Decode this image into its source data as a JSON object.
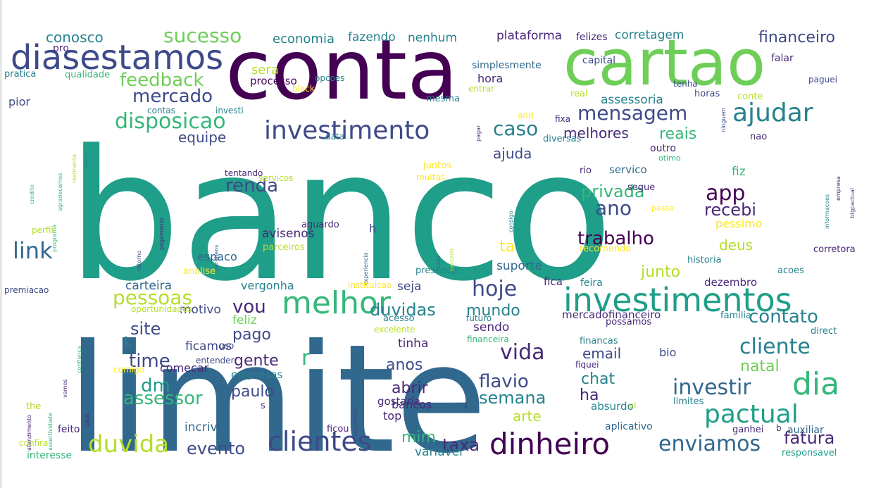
{
  "image": {
    "kind": "word cloud",
    "colormap": "viridis",
    "background": "#ffffff"
  },
  "palette": {
    "dark_purple": "#440154",
    "purple": "#482878",
    "indigo": "#3e4a89",
    "blue": "#31688e",
    "steel": "#26828e",
    "teal": "#1f9e89",
    "green_teal": "#35b779",
    "green": "#6ece58",
    "lime": "#b5de2b",
    "yellow": "#fde725"
  },
  "words": [
    {
      "text": "banco",
      "color": "#1f9e89"
    },
    {
      "text": "limite",
      "color": "#31688e"
    },
    {
      "text": "conta",
      "color": "#440154"
    },
    {
      "text": "cartao",
      "color": "#6ece58"
    },
    {
      "text": "diasestamos",
      "color": "#3e4a89"
    },
    {
      "text": "investimentos",
      "color": "#1f9e89"
    },
    {
      "text": "investimento",
      "color": "#3e4a89"
    },
    {
      "text": "melhor",
      "color": "#35b779"
    },
    {
      "text": "dinheiro",
      "color": "#440154"
    },
    {
      "text": "clientes",
      "color": "#3e4a89"
    },
    {
      "text": "dia",
      "color": "#35b779"
    },
    {
      "text": "pactual",
      "color": "#1f9e89"
    },
    {
      "text": "ajudar",
      "color": "#26828e"
    },
    {
      "text": "mensagem",
      "color": "#3e4a89"
    },
    {
      "text": "hoje",
      "color": "#3e4a89"
    },
    {
      "text": "cliente",
      "color": "#26828e"
    },
    {
      "text": "vida",
      "color": "#482878"
    },
    {
      "text": "investir",
      "color": "#31688e"
    },
    {
      "text": "enviamos",
      "color": "#31688e"
    },
    {
      "text": "duvida",
      "color": "#b5de2b"
    },
    {
      "text": "credito",
      "color": "#35b779"
    },
    {
      "text": "agradecemos",
      "color": "#35b779"
    },
    {
      "text": "link",
      "color": "#31688e"
    },
    {
      "text": "atendimento",
      "color": "#482878"
    },
    {
      "text": "assertividade",
      "color": "#35b779"
    },
    {
      "text": "disposicao",
      "color": "#35b779"
    },
    {
      "text": "mercado",
      "color": "#3e4a89"
    },
    {
      "text": "sucesso",
      "color": "#6ece58"
    },
    {
      "text": "feedback",
      "color": "#6ece58"
    },
    {
      "text": "caso",
      "color": "#26828e"
    },
    {
      "text": "ano",
      "color": "#3e4a89"
    },
    {
      "text": "privada",
      "color": "#35b779"
    },
    {
      "text": "app",
      "color": "#440154"
    },
    {
      "text": "renda",
      "color": "#3e4a89"
    },
    {
      "text": "trabalho",
      "color": "#440154"
    },
    {
      "text": "experiencia",
      "color": "#31688e"
    },
    {
      "text": "brasil",
      "color": "#31688e"
    },
    {
      "text": "parabens",
      "color": "#31688e"
    },
    {
      "text": "retorno",
      "color": "#3e4a89"
    },
    {
      "text": "pessoas",
      "color": "#b5de2b"
    },
    {
      "text": "vou",
      "color": "#482878"
    },
    {
      "text": "duvidas",
      "color": "#26828e"
    },
    {
      "text": "mundo",
      "color": "#26828e"
    },
    {
      "text": "contato",
      "color": "#26828e"
    },
    {
      "text": "informacoes",
      "color": "#26828e"
    },
    {
      "text": "empresa",
      "color": "#482878"
    },
    {
      "text": "recebi",
      "color": "#482878"
    },
    {
      "text": "reais",
      "color": "#35b779"
    },
    {
      "text": "ninguem",
      "color": "#3e4a89"
    },
    {
      "text": "melhores",
      "color": "#482878"
    },
    {
      "text": "equipe",
      "color": "#3e4a89"
    },
    {
      "text": "ajuda",
      "color": "#3e4a89"
    },
    {
      "text": "confianca",
      "color": "#35b779"
    },
    {
      "text": "vamos",
      "color": "#482878"
    },
    {
      "text": "time",
      "color": "#3e4a89"
    },
    {
      "text": "site",
      "color": "#3e4a89"
    },
    {
      "text": "dm",
      "color": "#1f9e89"
    },
    {
      "text": "assessor",
      "color": "#35b779"
    },
    {
      "text": "evento",
      "color": "#3e4a89"
    },
    {
      "text": "mim",
      "color": "#35b779"
    },
    {
      "text": "taxa",
      "color": "#482878"
    },
    {
      "text": "fatura",
      "color": "#482878"
    },
    {
      "text": "semana",
      "color": "#26828e"
    },
    {
      "text": "flavio",
      "color": "#3e4a89"
    },
    {
      "text": "abrir",
      "color": "#482878"
    },
    {
      "text": "anos",
      "color": "#3e4a89"
    },
    {
      "text": "chat",
      "color": "#26828e"
    },
    {
      "text": "natal",
      "color": "#6ece58"
    },
    {
      "text": "email",
      "color": "#3e4a89"
    },
    {
      "text": "gente",
      "color": "#482878"
    },
    {
      "text": "paulo",
      "color": "#3e4a89"
    },
    {
      "text": "arte",
      "color": "#b5de2b"
    },
    {
      "text": "ha",
      "color": "#482878"
    },
    {
      "text": "pago",
      "color": "#3e4a89"
    },
    {
      "text": "r",
      "color": "#35b779"
    },
    {
      "text": "junto",
      "color": "#b5de2b"
    },
    {
      "text": "deus",
      "color": "#b5de2b"
    },
    {
      "text": "ta",
      "color": "#fde725"
    },
    {
      "text": "btgpactual",
      "color": "#3e4a89"
    },
    {
      "text": "financeiro",
      "color": "#3e4a89"
    },
    {
      "text": "conosco",
      "color": "#26828e"
    },
    {
      "text": "economia",
      "color": "#26828e"
    },
    {
      "text": "fazendo",
      "color": "#26828e"
    },
    {
      "text": "nenhum",
      "color": "#26828e"
    },
    {
      "text": "plataforma",
      "color": "#482878"
    },
    {
      "text": "felizes",
      "color": "#482878"
    },
    {
      "text": "corretagem",
      "color": "#26828e"
    },
    {
      "text": "sera",
      "color": "#b5de2b"
    },
    {
      "text": "processo",
      "color": "#440154"
    },
    {
      "text": "hora",
      "color": "#482878"
    },
    {
      "text": "simplesmente",
      "color": "#31688e"
    },
    {
      "text": "capital",
      "color": "#3e4a89"
    },
    {
      "text": "falar",
      "color": "#482878"
    },
    {
      "text": "assessoria",
      "color": "#26828e"
    },
    {
      "text": "pior",
      "color": "#3e4a89"
    },
    {
      "text": "pratica",
      "color": "#26828e"
    },
    {
      "text": "qualidade",
      "color": "#35b779"
    },
    {
      "text": "realmente",
      "color": "#b5de2b"
    },
    {
      "text": "pagamento",
      "color": "#482878"
    },
    {
      "text": "suporte",
      "color": "#31688e"
    },
    {
      "text": "consigo",
      "color": "#26828e"
    },
    {
      "text": "parceria",
      "color": "#b5de2b"
    },
    {
      "text": "carteira",
      "color": "#31688e"
    },
    {
      "text": "vergonha",
      "color": "#26828e"
    },
    {
      "text": "motivo",
      "color": "#3e4a89"
    },
    {
      "text": "seja",
      "color": "#3e4a89"
    },
    {
      "text": "fica",
      "color": "#482878"
    },
    {
      "text": "dezembro",
      "color": "#482878"
    },
    {
      "text": "historia",
      "color": "#26828e"
    },
    {
      "text": "acoes",
      "color": "#26828e"
    },
    {
      "text": "servico",
      "color": "#31688e"
    },
    {
      "text": "fiz",
      "color": "#35b779"
    },
    {
      "text": "rio",
      "color": "#482878"
    },
    {
      "text": "pessimo",
      "color": "#fde725"
    },
    {
      "text": "recomendo",
      "color": "#fde725"
    },
    {
      "text": "mercadofinanceiro",
      "color": "#482878"
    },
    {
      "text": "possamos",
      "color": "#482878"
    },
    {
      "text": "familia",
      "color": "#26828e"
    },
    {
      "text": "direct",
      "color": "#26828e"
    },
    {
      "text": "feliz",
      "color": "#6ece58"
    },
    {
      "text": "ficamos",
      "color": "#3e4a89"
    },
    {
      "text": "sendo",
      "color": "#482878"
    },
    {
      "text": "tinha",
      "color": "#482878"
    },
    {
      "text": "bio",
      "color": "#3e4a89"
    },
    {
      "text": "comecar",
      "color": "#482878"
    },
    {
      "text": "empresas",
      "color": "#26828e"
    },
    {
      "text": "bancos",
      "color": "#482878"
    },
    {
      "text": "top",
      "color": "#482878"
    },
    {
      "text": "incrivel",
      "color": "#31688e"
    },
    {
      "text": "aplicativo",
      "color": "#31688e"
    },
    {
      "text": "auxiliar",
      "color": "#31688e"
    },
    {
      "text": "variavel",
      "color": "#26828e"
    },
    {
      "text": "interesse",
      "color": "#35b779"
    },
    {
      "text": "responsavel",
      "color": "#1f9e89"
    },
    {
      "text": "ganhei",
      "color": "#482878"
    },
    {
      "text": "b",
      "color": "#482878"
    },
    {
      "text": "absurdo",
      "color": "#26828e"
    },
    {
      "text": "vi",
      "color": "#b5de2b"
    },
    {
      "text": "limites",
      "color": "#26828e"
    },
    {
      "text": "gostaria",
      "color": "#482878"
    },
    {
      "text": "seguranca",
      "color": "#3e4a89"
    },
    {
      "text": "ficou",
      "color": "#482878"
    },
    {
      "text": "feito",
      "color": "#482878"
    },
    {
      "text": "confira",
      "color": "#b5de2b"
    },
    {
      "text": "the",
      "color": "#b5de2b"
    },
    {
      "text": "s",
      "color": "#482878"
    },
    {
      "text": "i",
      "color": "#482878"
    },
    {
      "text": "h",
      "color": "#3e4a89"
    },
    {
      "text": "k",
      "color": "#26828e"
    },
    {
      "text": "pro",
      "color": "#482878"
    },
    {
      "text": "espaco",
      "color": "#31688e"
    },
    {
      "text": "avisenos",
      "color": "#482878"
    },
    {
      "text": "aguardo",
      "color": "#482878"
    },
    {
      "text": "parceiros",
      "color": "#b5de2b"
    },
    {
      "text": "analise",
      "color": "#fde725"
    },
    {
      "text": "presenca",
      "color": "#26828e"
    },
    {
      "text": "instituicao",
      "color": "#fde725"
    },
    {
      "text": "feira",
      "color": "#26828e"
    },
    {
      "text": "corretora",
      "color": "#482878"
    },
    {
      "text": "segue",
      "color": "#482878"
    },
    {
      "text": "passo",
      "color": "#fde725"
    },
    {
      "text": "otimo",
      "color": "#35b779"
    },
    {
      "text": "contas",
      "color": "#26828e"
    },
    {
      "text": "investi",
      "color": "#26828e"
    },
    {
      "text": "and",
      "color": "#fde725"
    },
    {
      "text": "fixa",
      "color": "#482878"
    },
    {
      "text": "diversas",
      "color": "#26828e"
    },
    {
      "text": "data",
      "color": "#26828e"
    },
    {
      "text": "pagar",
      "color": "#482878"
    },
    {
      "text": "mesma",
      "color": "#26828e"
    },
    {
      "text": "entrar",
      "color": "#b5de2b"
    },
    {
      "text": "real",
      "color": "#b5de2b"
    },
    {
      "text": "horas",
      "color": "#3e4a89"
    },
    {
      "text": "tenha",
      "color": "#3e4a89"
    },
    {
      "text": "conte",
      "color": "#b5de2b"
    },
    {
      "text": "paguei",
      "color": "#3e4a89"
    },
    {
      "text": "nao",
      "color": "#482878"
    },
    {
      "text": "outro",
      "color": "#482878"
    },
    {
      "text": "juntos",
      "color": "#fde725"
    },
    {
      "text": "muitas",
      "color": "#fde725"
    },
    {
      "text": "servicos",
      "color": "#b5de2b"
    },
    {
      "text": "tentando",
      "color": "#482878"
    },
    {
      "text": "lucro",
      "color": "#26828e"
    },
    {
      "text": "programa",
      "color": "#35b779"
    },
    {
      "text": "perfil",
      "color": "#b5de2b"
    },
    {
      "text": "opcoes",
      "color": "#26828e"
    },
    {
      "text": "black",
      "color": "#fde725"
    },
    {
      "text": "premiacao",
      "color": "#3e4a89"
    },
    {
      "text": "oportunidades",
      "color": "#b5de2b"
    },
    {
      "text": "casa",
      "color": "#482878"
    },
    {
      "text": "acesso",
      "color": "#26828e"
    },
    {
      "text": "futuro",
      "color": "#26828e"
    },
    {
      "text": "excelente",
      "color": "#b5de2b"
    },
    {
      "text": "financeira",
      "color": "#35b779"
    },
    {
      "text": "financas",
      "color": "#26828e"
    },
    {
      "text": "fiquei",
      "color": "#482878"
    },
    {
      "text": "uso",
      "color": "#3e4a89"
    },
    {
      "text": "entender",
      "color": "#3e4a89"
    },
    {
      "text": "comigo",
      "color": "#fde725"
    }
  ]
}
